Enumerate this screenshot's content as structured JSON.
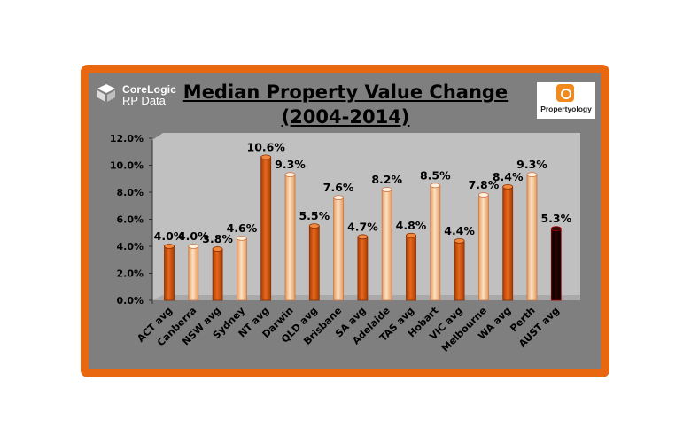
{
  "header": {
    "title_line1": "Median Property Value Change",
    "title_line2": "(2004-2014)",
    "logo_left_line1": "CoreLogic",
    "logo_left_line2": "RP Data",
    "logo_right_name": "Propertyology"
  },
  "colors": {
    "frame": "#e9680f",
    "panel": "#7f7f7f",
    "plot_area": "#c0c0c0",
    "avg_bar": "#d4550f",
    "city_bar": "#f5c08e",
    "national_bar": "#1a0000"
  },
  "chart_data": {
    "type": "bar",
    "title": "Median Property Value Change (2004-2014)",
    "categories": [
      "ACT avg",
      "Canberra",
      "NSW avg",
      "Sydney",
      "NT avg",
      "Darwin",
      "QLD avg",
      "Brisbane",
      "SA avg",
      "Adelaide",
      "TAS avg",
      "Hobart",
      "VIC avg",
      "Melbourne",
      "WA avg",
      "Perth",
      "AUST avg"
    ],
    "values": [
      4.0,
      4.0,
      3.8,
      4.6,
      10.6,
      9.3,
      5.5,
      7.6,
      4.7,
      8.2,
      4.8,
      8.5,
      4.4,
      7.8,
      8.4,
      9.3,
      5.3
    ],
    "data_labels": [
      "4.0%",
      "4.0%",
      "3.8%",
      "4.6%",
      "10.6%",
      "9.3%",
      "5.5%",
      "7.6%",
      "4.7%",
      "8.2%",
      "4.8%",
      "8.5%",
      "4.4%",
      "7.8%",
      "8.4%",
      "9.3%",
      "5.3%"
    ],
    "kinds": [
      "avg",
      "city",
      "avg",
      "city",
      "avg",
      "city",
      "avg",
      "city",
      "avg",
      "city",
      "avg",
      "city",
      "avg",
      "city",
      "avg",
      "city",
      "national"
    ],
    "ylim": [
      0,
      12
    ],
    "yticks": [
      0,
      2,
      4,
      6,
      8,
      10,
      12
    ],
    "ytick_labels": [
      "0.0%",
      "2.0%",
      "4.0%",
      "6.0%",
      "8.0%",
      "10.0%",
      "12.0%"
    ],
    "xlabel": "",
    "ylabel": "",
    "grid": false,
    "legend": "none"
  }
}
